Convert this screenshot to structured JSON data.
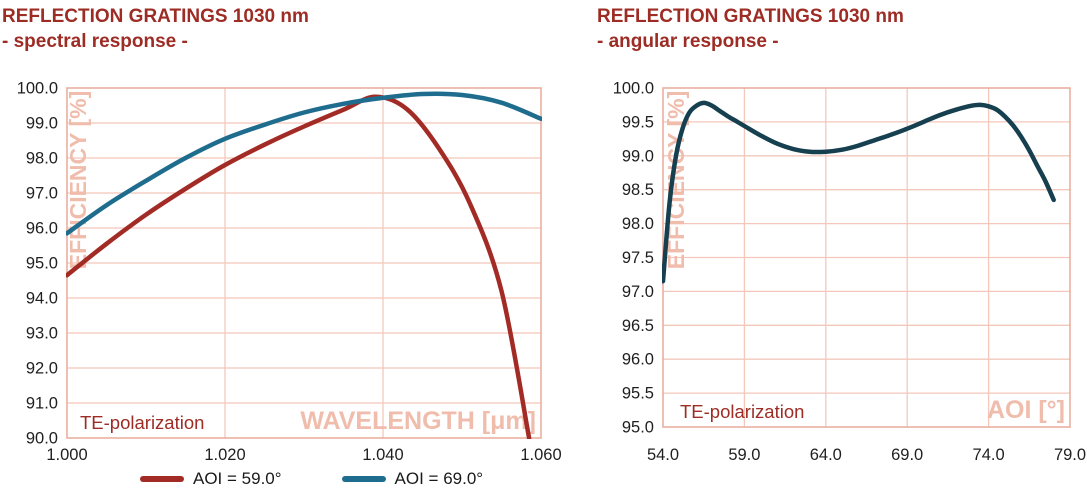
{
  "colors": {
    "title": "#9d2c25",
    "annotation": "#9d2c25",
    "watermark": "#f0bcac",
    "grid": "#f3c8bb",
    "plot_border": "#e9afa0",
    "tick_text": "#1f1f1f",
    "legend_text": "#1a1a1a",
    "series_red": "#a32b26",
    "series_teal": "#1f6d8e",
    "series_navy": "#16404f"
  },
  "charts": [
    {
      "title_line1": "REFLECTION GRATINGS 1030 nm",
      "title_line2": "- spectral response -",
      "y_tick_labels": [
        "100.0",
        "99.0",
        "98.0",
        "97.0",
        "96.0",
        "95.0",
        "94.0",
        "93.0",
        "92.0",
        "91.0",
        "90.0"
      ],
      "x_tick_labels": [
        "1.000",
        "1.020",
        "1.040",
        "1.060"
      ]
    },
    {
      "title_line1": "REFLECTION GRATINGS 1030 nm",
      "title_line2": "- angular response -",
      "y_tick_labels": [
        "100.0",
        "99.5",
        "99.0",
        "98.5",
        "98.0",
        "97.5",
        "97.0",
        "96.5",
        "96.0",
        "95.5",
        "95.0"
      ],
      "x_tick_labels": [
        "54.0",
        "59.0",
        "64.0",
        "69.0",
        "74.0",
        "79.0"
      ]
    }
  ],
  "legend": {
    "items": [
      {
        "label": "AOI = 59.0°",
        "color": "#a32b26"
      },
      {
        "label": "AOI = 69.0°",
        "color": "#1f6d8e"
      }
    ]
  },
  "chart_data": [
    {
      "type": "line",
      "title": "REFLECTION GRATINGS 1030 nm - spectral response -",
      "xlabel": "WAVELENGTH [μm]",
      "ylabel": "EFFICIENCY [%]",
      "annotation": "TE-polarization",
      "xlim": [
        1.0,
        1.06
      ],
      "ylim": [
        90.0,
        100.0
      ],
      "x_tick_step": 0.02,
      "y_tick_step": 1.0,
      "grid": true,
      "legend_position": "bottom",
      "series": [
        {
          "name": "AOI = 59.0°",
          "color": "#a32b26",
          "points": [
            [
              1.0,
              94.65
            ],
            [
              1.005,
              95.55
            ],
            [
              1.01,
              96.38
            ],
            [
              1.015,
              97.12
            ],
            [
              1.02,
              97.8
            ],
            [
              1.025,
              98.38
            ],
            [
              1.03,
              98.9
            ],
            [
              1.035,
              99.38
            ],
            [
              1.039,
              99.75
            ],
            [
              1.043,
              99.4
            ],
            [
              1.047,
              98.3
            ],
            [
              1.051,
              96.7
            ],
            [
              1.055,
              94.2
            ],
            [
              1.0585,
              90.0
            ]
          ]
        },
        {
          "name": "AOI = 69.0°",
          "color": "#1f6d8e",
          "points": [
            [
              1.0,
              95.85
            ],
            [
              1.005,
              96.65
            ],
            [
              1.01,
              97.35
            ],
            [
              1.015,
              98.0
            ],
            [
              1.02,
              98.55
            ],
            [
              1.025,
              98.95
            ],
            [
              1.03,
              99.3
            ],
            [
              1.035,
              99.55
            ],
            [
              1.04,
              99.72
            ],
            [
              1.045,
              99.83
            ],
            [
              1.05,
              99.8
            ],
            [
              1.055,
              99.58
            ],
            [
              1.06,
              99.12
            ]
          ]
        }
      ]
    },
    {
      "type": "line",
      "title": "REFLECTION GRATINGS 1030 nm - angular response -",
      "xlabel": "AOI [°]",
      "ylabel": "EFFICIENCY [%]",
      "annotation": "TE-polarization",
      "xlim": [
        54.0,
        79.0
      ],
      "ylim": [
        95.0,
        100.0
      ],
      "x_tick_step": 5.0,
      "y_tick_step": 0.5,
      "grid": true,
      "legend_position": "none",
      "series": [
        {
          "name": "TE-polarization",
          "color": "#16404f",
          "points": [
            [
              54.0,
              97.15
            ],
            [
              54.4,
              98.3
            ],
            [
              54.8,
              99.0
            ],
            [
              55.2,
              99.4
            ],
            [
              55.6,
              99.63
            ],
            [
              56.0,
              99.73
            ],
            [
              56.5,
              99.78
            ],
            [
              57.0,
              99.74
            ],
            [
              57.5,
              99.66
            ],
            [
              58.0,
              99.58
            ],
            [
              58.5,
              99.51
            ],
            [
              59.0,
              99.44
            ],
            [
              60.0,
              99.3
            ],
            [
              61.0,
              99.18
            ],
            [
              62.0,
              99.1
            ],
            [
              63.0,
              99.06
            ],
            [
              64.0,
              99.06
            ],
            [
              65.0,
              99.09
            ],
            [
              66.0,
              99.15
            ],
            [
              67.0,
              99.23
            ],
            [
              68.0,
              99.31
            ],
            [
              69.0,
              99.4
            ],
            [
              70.0,
              99.5
            ],
            [
              71.0,
              99.6
            ],
            [
              72.0,
              99.68
            ],
            [
              73.0,
              99.74
            ],
            [
              73.5,
              99.75
            ],
            [
              74.0,
              99.73
            ],
            [
              74.5,
              99.68
            ],
            [
              75.0,
              99.58
            ],
            [
              75.5,
              99.45
            ],
            [
              76.0,
              99.28
            ],
            [
              76.5,
              99.08
            ],
            [
              77.0,
              98.85
            ],
            [
              77.5,
              98.62
            ],
            [
              78.0,
              98.35
            ]
          ]
        }
      ]
    }
  ]
}
